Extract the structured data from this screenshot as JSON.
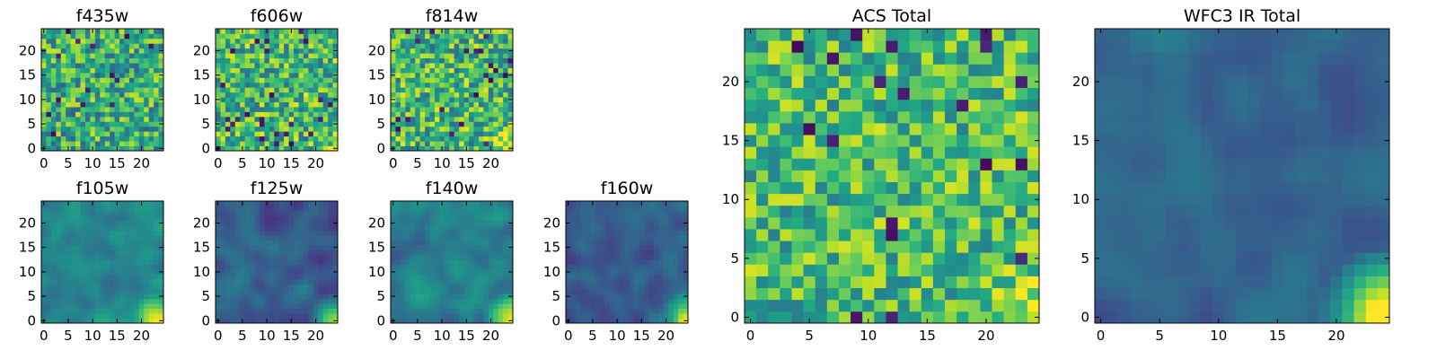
{
  "figure": {
    "description_free": true,
    "colormap": [
      "#440154",
      "#482475",
      "#414487",
      "#355f8d",
      "#2a788e",
      "#21918c",
      "#22a884",
      "#44bf70",
      "#7ad151",
      "#bddf26",
      "#fde725"
    ]
  },
  "chart_data": [
    {
      "id": "f435w",
      "type": "heatmap",
      "title": "f435w",
      "size": 25,
      "xticks": [
        0,
        5,
        10,
        15,
        20
      ],
      "yticks": [
        0,
        5,
        10,
        15,
        20
      ],
      "seed": 11,
      "texture": "noise",
      "base": 0.62,
      "spread": 0.3,
      "hot_corner": 0.0
    },
    {
      "id": "f606w",
      "type": "heatmap",
      "title": "f606w",
      "size": 25,
      "xticks": [
        0,
        5,
        10,
        15,
        20
      ],
      "yticks": [
        0,
        5,
        10,
        15,
        20
      ],
      "seed": 23,
      "texture": "noise",
      "base": 0.66,
      "spread": 0.3,
      "hot_corner": 0.15
    },
    {
      "id": "f814w",
      "type": "heatmap",
      "title": "f814w",
      "size": 25,
      "xticks": [
        0,
        5,
        10,
        15,
        20
      ],
      "yticks": [
        0,
        5,
        10,
        15,
        20
      ],
      "seed": 37,
      "texture": "noise",
      "base": 0.66,
      "spread": 0.3,
      "hot_corner": 0.3
    },
    {
      "id": "f105w",
      "type": "heatmap",
      "title": "f105w",
      "size": 25,
      "xticks": [
        0,
        5,
        10,
        15,
        20
      ],
      "yticks": [
        0,
        5,
        10,
        15,
        20
      ],
      "seed": 41,
      "texture": "smooth",
      "base": 0.46,
      "spread": 0.26,
      "hot_corner": 0.7
    },
    {
      "id": "f125w",
      "type": "heatmap",
      "title": "f125w",
      "size": 25,
      "xticks": [
        0,
        5,
        10,
        15,
        20
      ],
      "yticks": [
        0,
        5,
        10,
        15,
        20
      ],
      "seed": 53,
      "texture": "smooth",
      "base": 0.3,
      "spread": 0.24,
      "hot_corner": 0.8
    },
    {
      "id": "f140w",
      "type": "heatmap",
      "title": "f140w",
      "size": 25,
      "xticks": [
        0,
        5,
        10,
        15,
        20
      ],
      "yticks": [
        0,
        5,
        10,
        15,
        20
      ],
      "seed": 67,
      "texture": "smooth",
      "base": 0.44,
      "spread": 0.26,
      "hot_corner": 0.75
    },
    {
      "id": "f160w",
      "type": "heatmap",
      "title": "f160w",
      "size": 25,
      "xticks": [
        0,
        5,
        10,
        15,
        20
      ],
      "yticks": [
        0,
        5,
        10,
        15,
        20
      ],
      "seed": 79,
      "texture": "smooth",
      "base": 0.3,
      "spread": 0.22,
      "hot_corner": 0.8
    },
    {
      "id": "acs",
      "type": "heatmap",
      "title": "ACS Total",
      "size": 25,
      "xticks": [
        0,
        5,
        10,
        15,
        20
      ],
      "yticks": [
        0,
        5,
        10,
        15,
        20
      ],
      "seed": 97,
      "texture": "noise",
      "base": 0.68,
      "spread": 0.26,
      "hot_corner": 0.3
    },
    {
      "id": "wfc3",
      "type": "heatmap",
      "title": "WFC3 IR Total",
      "size": 25,
      "xticks": [
        0,
        5,
        10,
        15,
        20
      ],
      "yticks": [
        0,
        5,
        10,
        15,
        20
      ],
      "seed": 131,
      "texture": "smooth",
      "base": 0.32,
      "spread": 0.18,
      "hot_corner": 1.0
    }
  ]
}
